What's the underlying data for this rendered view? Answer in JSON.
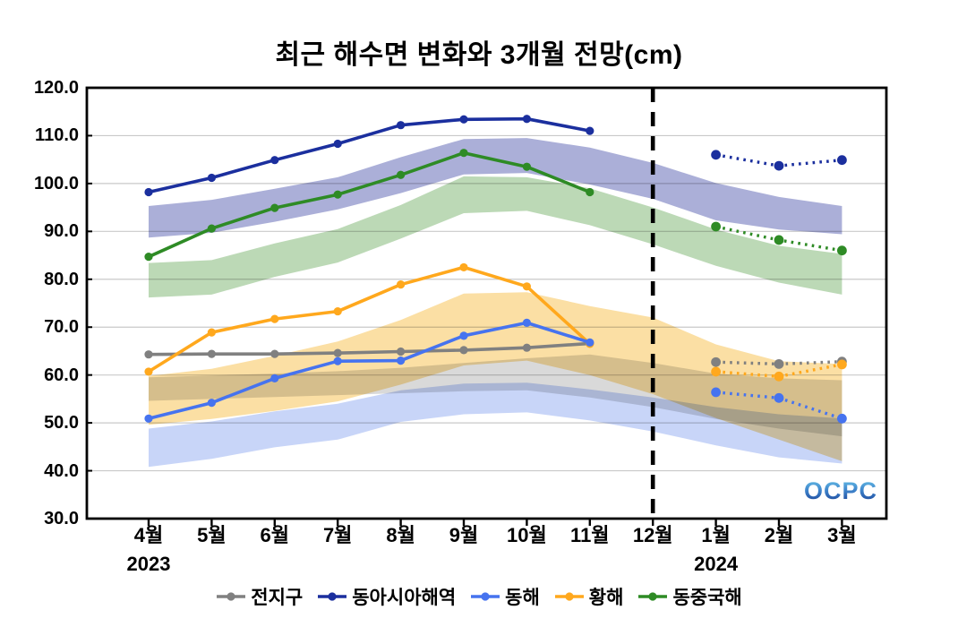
{
  "title": "최근 해수면 변화와 3개월 전망(cm)",
  "logo": {
    "text": "OCPC"
  },
  "chart_data": {
    "type": "line",
    "title": "최근 해수면 변화와 3개월 전망(cm)",
    "unit": "cm",
    "ylim": [
      30,
      120
    ],
    "y_ticks": [
      "120.0",
      "110.0",
      "100.0",
      "90.0",
      "80.0",
      "70.0",
      "60.0",
      "50.0",
      "40.0",
      "30.0"
    ],
    "x_categories": [
      "4월",
      "5월",
      "6월",
      "7월",
      "8월",
      "9월",
      "10월",
      "11월",
      "12월",
      "1월",
      "2월",
      "3월"
    ],
    "year_labels": [
      {
        "text": "2023",
        "month_index": 0
      },
      {
        "text": "2024",
        "month_index": 9
      }
    ],
    "forecast_divider_month": "12월",
    "forecast_divider_index": 8,
    "grid": "horizontal",
    "legend_position": "bottom",
    "observed_month_indices": [
      0,
      1,
      2,
      3,
      4,
      5,
      6,
      7
    ],
    "forecast_month_indices": [
      9,
      10,
      11
    ],
    "series": [
      {
        "id": "global",
        "name": "전지구",
        "color": "#808080",
        "band_color": "#d9d9d9",
        "observed": [
          64.3,
          64.4,
          64.4,
          64.6,
          64.9,
          65.2,
          65.7,
          66.6
        ],
        "forecast": [
          62.7,
          62.3,
          62.8
        ],
        "band_top": [
          59.5,
          59.9,
          60.3,
          60.8,
          61.5,
          62.5,
          63.5,
          64.3,
          62.5,
          60.3,
          59.3,
          58.9
        ],
        "band_bottom": [
          54.6,
          55.0,
          55.4,
          55.8,
          56.2,
          56.6,
          56.8,
          55.3,
          53.3,
          50.8,
          48.8,
          47.2
        ]
      },
      {
        "id": "east-asia",
        "name": "동아시아해역",
        "color": "#1b2f9e",
        "band_color": "#abafd8",
        "observed": [
          98.2,
          101.2,
          104.9,
          108.3,
          112.2,
          113.4,
          113.5,
          111.0
        ],
        "forecast": [
          106.0,
          103.7,
          104.9
        ],
        "band_top": [
          95.3,
          96.6,
          98.9,
          101.3,
          105.5,
          109.3,
          109.5,
          107.5,
          104.3,
          100.1,
          97.2,
          95.3
        ],
        "band_bottom": [
          88.7,
          89.7,
          92.0,
          94.6,
          98.0,
          101.9,
          102.2,
          99.8,
          96.8,
          92.3,
          90.4,
          89.4
        ]
      },
      {
        "id": "east-sea",
        "name": "동해",
        "color": "#4673ef",
        "band_color": "#c8d5f8",
        "observed": [
          50.9,
          54.2,
          59.3,
          62.9,
          63.0,
          68.2,
          70.9,
          66.8
        ],
        "forecast": [
          56.4,
          55.2,
          50.9
        ],
        "band_top": [
          48.8,
          50.3,
          52.4,
          54.0,
          56.8,
          58.2,
          58.4,
          57.0,
          55.3,
          53.3,
          51.8,
          50.9
        ],
        "band_bottom": [
          40.8,
          42.5,
          44.9,
          46.5,
          50.2,
          51.8,
          52.2,
          50.5,
          48.2,
          45.3,
          42.8,
          41.5
        ]
      },
      {
        "id": "yellow-sea",
        "name": "황해",
        "color": "#ffa81d",
        "band_color": "#fbdfa4",
        "observed": [
          60.7,
          68.9,
          71.7,
          73.3,
          78.9,
          82.5,
          78.5,
          66.5
        ],
        "forecast": [
          60.7,
          59.7,
          62.2
        ],
        "band_top": [
          59.8,
          61.3,
          64.0,
          67.0,
          71.5,
          77.0,
          77.3,
          74.4,
          72.0,
          66.4,
          62.9,
          62.3
        ],
        "band_bottom": [
          49.6,
          50.8,
          52.5,
          54.5,
          58.0,
          62.0,
          63.0,
          60.0,
          56.0,
          51.0,
          46.5,
          42.0
        ]
      },
      {
        "id": "east-china-sea",
        "name": "동중국해",
        "color": "#2e8b25",
        "band_color": "#bcd9b6",
        "observed": [
          84.7,
          90.6,
          94.9,
          97.7,
          101.8,
          106.4,
          103.5,
          98.2
        ],
        "forecast": [
          91.0,
          88.2,
          86.0
        ],
        "band_top": [
          83.4,
          84.0,
          87.5,
          90.5,
          95.5,
          101.5,
          101.3,
          99.0,
          95.0,
          90.4,
          87.0,
          85.3
        ],
        "band_bottom": [
          76.2,
          76.8,
          80.5,
          83.5,
          88.5,
          93.8,
          94.3,
          91.3,
          87.3,
          82.8,
          79.3,
          76.8
        ]
      }
    ]
  }
}
